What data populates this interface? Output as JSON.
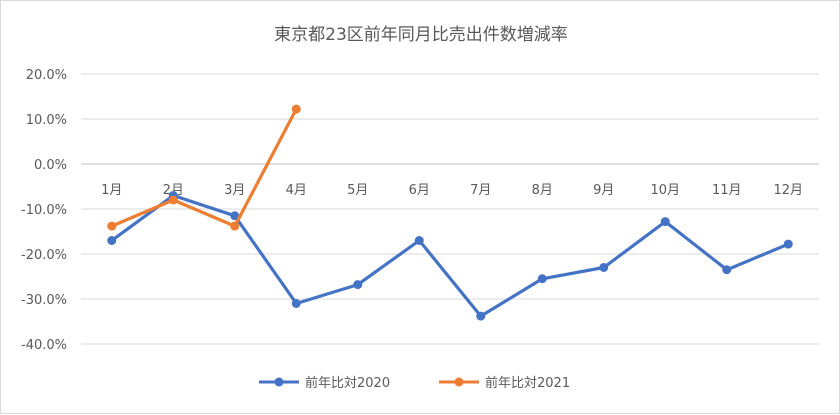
{
  "chart_data": {
    "type": "line",
    "title": "東京都23区前年同月比売出件数増減率",
    "categories": [
      "1月",
      "2月",
      "3月",
      "4月",
      "5月",
      "6月",
      "7月",
      "8月",
      "9月",
      "10月",
      "11月",
      "12月"
    ],
    "yticks": [
      "20.0%",
      "10.0%",
      "0.0%",
      "-10.0%",
      "-20.0%",
      "-30.0%",
      "-40.0%"
    ],
    "ylim": [
      -40,
      20
    ],
    "yunit": "%",
    "grid": true,
    "legend": "bottom",
    "series": [
      {
        "name": "前年比対2020",
        "color": "#4472c4",
        "values": [
          -17.0,
          -7.0,
          -11.5,
          -31.0,
          -26.8,
          -17.0,
          -33.8,
          -25.5,
          -23.0,
          -12.8,
          -23.5,
          -17.8
        ]
      },
      {
        "name": "前年比対2021",
        "color": "#ed7d31",
        "values": [
          -13.8,
          -8.0,
          -13.8,
          12.2,
          null,
          null,
          null,
          null,
          null,
          null,
          null,
          null
        ]
      }
    ]
  }
}
